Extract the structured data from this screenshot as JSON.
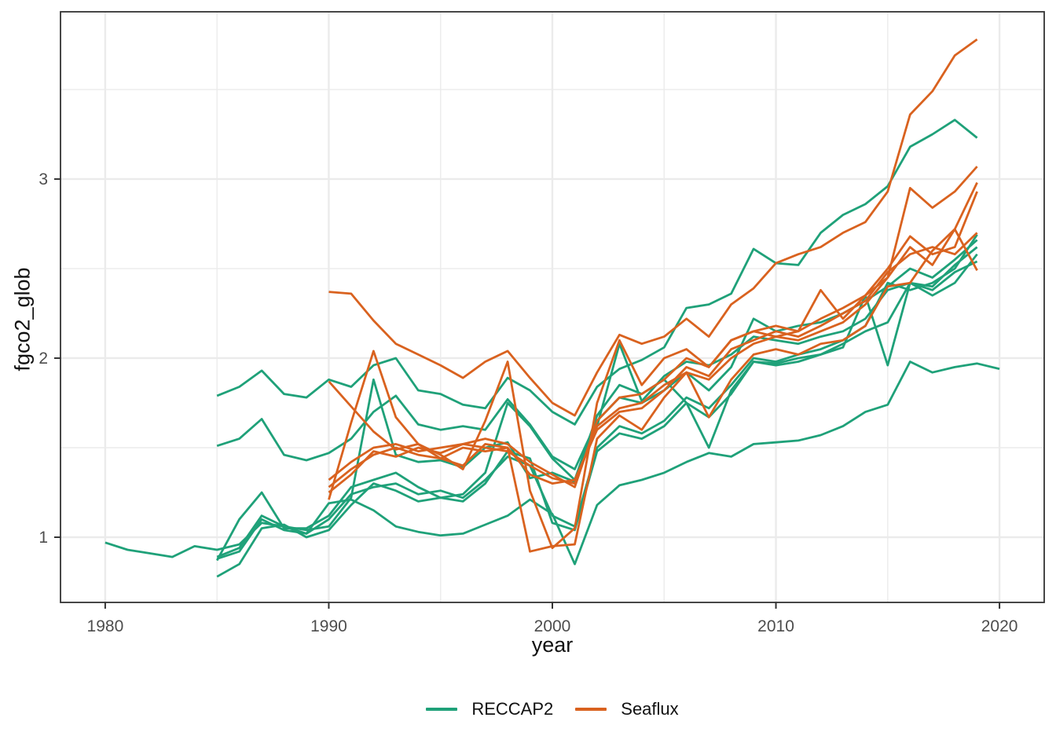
{
  "figure": {
    "background": "#ffffff"
  },
  "legend": {
    "items": [
      {
        "label": "RECCAP2",
        "color": "#1fa179"
      },
      {
        "label": "Seaflux",
        "color": "#d9621f"
      }
    ]
  },
  "style": {
    "grid_color": "#ebebeb",
    "panel_border_color": "#333333",
    "tick_color": "#333333",
    "tick_label_color": "#4d4d4d",
    "line_width": 2.8
  },
  "chart_data": {
    "type": "line",
    "title": "",
    "xlabel": "year",
    "ylabel": "fgco2_glob",
    "xlim": [
      1978,
      2022
    ],
    "ylim": [
      0.636,
      3.934
    ],
    "x_ticks": [
      1980,
      1990,
      2000,
      2010,
      2020
    ],
    "x_minor": [
      1985,
      1995,
      2005,
      2015
    ],
    "y_ticks": [
      1,
      2,
      3
    ],
    "y_minor": [
      1.5,
      2.5,
      3.5
    ],
    "grid": "major+minor",
    "legend_position": "bottom",
    "x": [
      1980,
      1981,
      1982,
      1983,
      1984,
      1985,
      1986,
      1987,
      1988,
      1989,
      1990,
      1991,
      1992,
      1993,
      1994,
      1995,
      1996,
      1997,
      1998,
      1999,
      2000,
      2001,
      2002,
      2003,
      2004,
      2005,
      2006,
      2007,
      2008,
      2009,
      2010,
      2011,
      2012,
      2013,
      2014,
      2015,
      2016,
      2017,
      2018,
      2019,
      2020
    ],
    "series": [
      {
        "name": "reccap2_1",
        "group": "RECCAP2",
        "color": "#1fa179",
        "values": [
          0.97,
          0.93,
          0.91,
          0.89,
          0.95,
          0.93,
          0.96,
          1.08,
          1.06,
          1.02,
          1.19,
          1.21,
          1.15,
          1.06,
          1.03,
          1.01,
          1.02,
          1.07,
          1.12,
          1.21,
          1.13,
          0.85,
          1.18,
          1.29,
          1.32,
          1.36,
          1.42,
          1.47,
          1.45,
          1.52,
          1.53,
          1.54,
          1.57,
          1.62,
          1.7,
          1.74,
          1.98,
          1.92,
          1.95,
          1.97,
          1.94
        ]
      },
      {
        "name": "reccap2_2",
        "group": "RECCAP2",
        "color": "#1fa179",
        "values": [
          null,
          null,
          null,
          null,
          null,
          1.79,
          1.84,
          1.93,
          1.8,
          1.78,
          1.88,
          1.84,
          1.96,
          2.0,
          1.82,
          1.8,
          1.74,
          1.72,
          1.89,
          1.82,
          1.7,
          1.63,
          1.84,
          1.94,
          1.99,
          2.06,
          2.28,
          2.3,
          2.36,
          2.61,
          2.53,
          2.52,
          2.7,
          2.8,
          2.86,
          2.96,
          3.18,
          3.25,
          3.33,
          3.23,
          null
        ]
      },
      {
        "name": "reccap2_3",
        "group": "RECCAP2",
        "color": "#1fa179",
        "values": [
          null,
          null,
          null,
          null,
          null,
          1.51,
          1.55,
          1.66,
          1.46,
          1.43,
          1.47,
          1.55,
          1.7,
          1.79,
          1.63,
          1.6,
          1.62,
          1.6,
          1.77,
          1.63,
          1.45,
          1.38,
          1.65,
          1.78,
          1.75,
          1.82,
          1.92,
          1.82,
          1.95,
          2.22,
          2.15,
          2.18,
          2.2,
          2.25,
          2.32,
          2.4,
          2.5,
          2.45,
          2.55,
          2.66,
          null
        ]
      },
      {
        "name": "reccap2_4",
        "group": "RECCAP2",
        "color": "#1fa179",
        "values": [
          null,
          null,
          null,
          null,
          null,
          0.89,
          0.94,
          1.12,
          1.06,
          1.04,
          1.06,
          1.22,
          1.88,
          1.46,
          1.42,
          1.43,
          1.39,
          1.5,
          1.53,
          1.33,
          1.36,
          1.31,
          1.62,
          2.08,
          1.76,
          1.9,
          1.98,
          1.96,
          2.02,
          2.12,
          2.1,
          2.08,
          2.12,
          2.15,
          2.22,
          2.38,
          2.42,
          2.4,
          2.52,
          2.62,
          null
        ]
      },
      {
        "name": "reccap2_5",
        "group": "RECCAP2",
        "color": "#1fa179",
        "values": [
          null,
          null,
          null,
          null,
          null,
          0.87,
          1.1,
          1.25,
          1.05,
          1.05,
          1.12,
          1.28,
          1.32,
          1.36,
          1.28,
          1.22,
          1.24,
          1.36,
          1.75,
          1.62,
          1.44,
          1.32,
          1.68,
          1.85,
          1.8,
          1.88,
          1.75,
          1.5,
          1.82,
          1.98,
          1.97,
          2.0,
          2.02,
          2.08,
          2.15,
          2.2,
          2.42,
          2.38,
          2.48,
          2.54,
          null
        ]
      },
      {
        "name": "reccap2_6",
        "group": "RECCAP2",
        "color": "#1fa179",
        "values": [
          null,
          null,
          null,
          null,
          null,
          0.78,
          0.85,
          1.05,
          1.07,
          1.0,
          1.04,
          1.18,
          1.3,
          1.26,
          1.2,
          1.22,
          1.2,
          1.3,
          1.48,
          1.44,
          1.08,
          1.04,
          1.48,
          1.58,
          1.55,
          1.62,
          1.75,
          1.67,
          1.8,
          1.98,
          1.96,
          1.98,
          2.02,
          2.06,
          2.35,
          1.96,
          2.42,
          2.35,
          2.42,
          2.58,
          null
        ]
      },
      {
        "name": "reccap2_7",
        "group": "RECCAP2",
        "color": "#1fa179",
        "values": [
          null,
          null,
          null,
          null,
          null,
          0.88,
          0.92,
          1.1,
          1.04,
          1.02,
          1.1,
          1.24,
          1.28,
          1.3,
          1.24,
          1.26,
          1.22,
          1.32,
          1.45,
          1.4,
          1.12,
          1.06,
          1.5,
          1.62,
          1.58,
          1.65,
          1.78,
          1.72,
          1.85,
          2.0,
          1.98,
          2.02,
          2.05,
          2.1,
          2.18,
          2.42,
          2.38,
          2.42,
          2.5,
          2.69,
          null
        ]
      },
      {
        "name": "seaflux_1",
        "group": "Seaflux",
        "color": "#d9621f",
        "values": [
          null,
          null,
          null,
          null,
          null,
          null,
          null,
          null,
          null,
          null,
          2.37,
          2.36,
          2.21,
          2.08,
          2.02,
          1.96,
          1.89,
          1.98,
          2.04,
          1.89,
          1.75,
          1.68,
          1.92,
          2.13,
          2.08,
          2.12,
          2.22,
          2.12,
          2.3,
          2.39,
          2.53,
          2.58,
          2.62,
          2.7,
          2.76,
          2.93,
          3.36,
          3.49,
          3.69,
          3.78,
          null
        ]
      },
      {
        "name": "seaflux_2",
        "group": "Seaflux",
        "color": "#d9621f",
        "values": [
          null,
          null,
          null,
          null,
          null,
          null,
          null,
          null,
          null,
          null,
          1.87,
          1.73,
          1.59,
          1.49,
          1.52,
          1.44,
          1.4,
          1.52,
          1.5,
          0.92,
          0.95,
          0.96,
          1.55,
          1.68,
          1.6,
          1.78,
          1.92,
          1.67,
          1.88,
          2.02,
          2.05,
          2.02,
          2.08,
          2.1,
          2.18,
          2.4,
          2.42,
          2.6,
          2.72,
          2.49,
          null
        ]
      },
      {
        "name": "seaflux_3",
        "group": "Seaflux",
        "color": "#d9621f",
        "values": [
          null,
          null,
          null,
          null,
          null,
          null,
          null,
          null,
          null,
          null,
          1.21,
          1.64,
          2.04,
          1.67,
          1.52,
          1.46,
          1.38,
          1.65,
          1.98,
          1.26,
          0.94,
          1.05,
          1.75,
          2.1,
          1.85,
          2.0,
          2.05,
          1.95,
          2.1,
          2.15,
          2.12,
          2.15,
          2.38,
          2.22,
          2.35,
          2.45,
          2.95,
          2.84,
          2.93,
          3.07,
          null
        ]
      },
      {
        "name": "seaflux_4",
        "group": "Seaflux",
        "color": "#d9621f",
        "values": [
          null,
          null,
          null,
          null,
          null,
          null,
          null,
          null,
          null,
          null,
          1.32,
          1.42,
          1.5,
          1.52,
          1.48,
          1.5,
          1.52,
          1.5,
          1.48,
          1.4,
          1.33,
          1.3,
          1.62,
          1.72,
          1.75,
          1.85,
          1.92,
          1.88,
          2.0,
          2.08,
          2.12,
          2.1,
          2.15,
          2.2,
          2.3,
          2.45,
          2.62,
          2.52,
          2.72,
          2.98,
          null
        ]
      },
      {
        "name": "seaflux_5",
        "group": "Seaflux",
        "color": "#d9621f",
        "values": [
          null,
          null,
          null,
          null,
          null,
          null,
          null,
          null,
          null,
          null,
          1.28,
          1.38,
          1.46,
          1.5,
          1.46,
          1.44,
          1.5,
          1.48,
          1.5,
          1.35,
          1.3,
          1.32,
          1.6,
          1.7,
          1.72,
          1.82,
          1.95,
          1.9,
          2.05,
          2.1,
          2.15,
          2.12,
          2.18,
          2.25,
          2.32,
          2.48,
          2.58,
          2.62,
          2.58,
          2.7,
          null
        ]
      },
      {
        "name": "seaflux_6",
        "group": "Seaflux",
        "color": "#d9621f",
        "values": [
          null,
          null,
          null,
          null,
          null,
          null,
          null,
          null,
          null,
          null,
          1.25,
          1.35,
          1.48,
          1.45,
          1.5,
          1.47,
          1.52,
          1.55,
          1.52,
          1.42,
          1.35,
          1.28,
          1.65,
          1.78,
          1.8,
          1.88,
          2.0,
          1.95,
          2.1,
          2.15,
          2.18,
          2.15,
          2.22,
          2.28,
          2.35,
          2.5,
          2.68,
          2.58,
          2.62,
          2.93,
          null
        ]
      }
    ]
  }
}
